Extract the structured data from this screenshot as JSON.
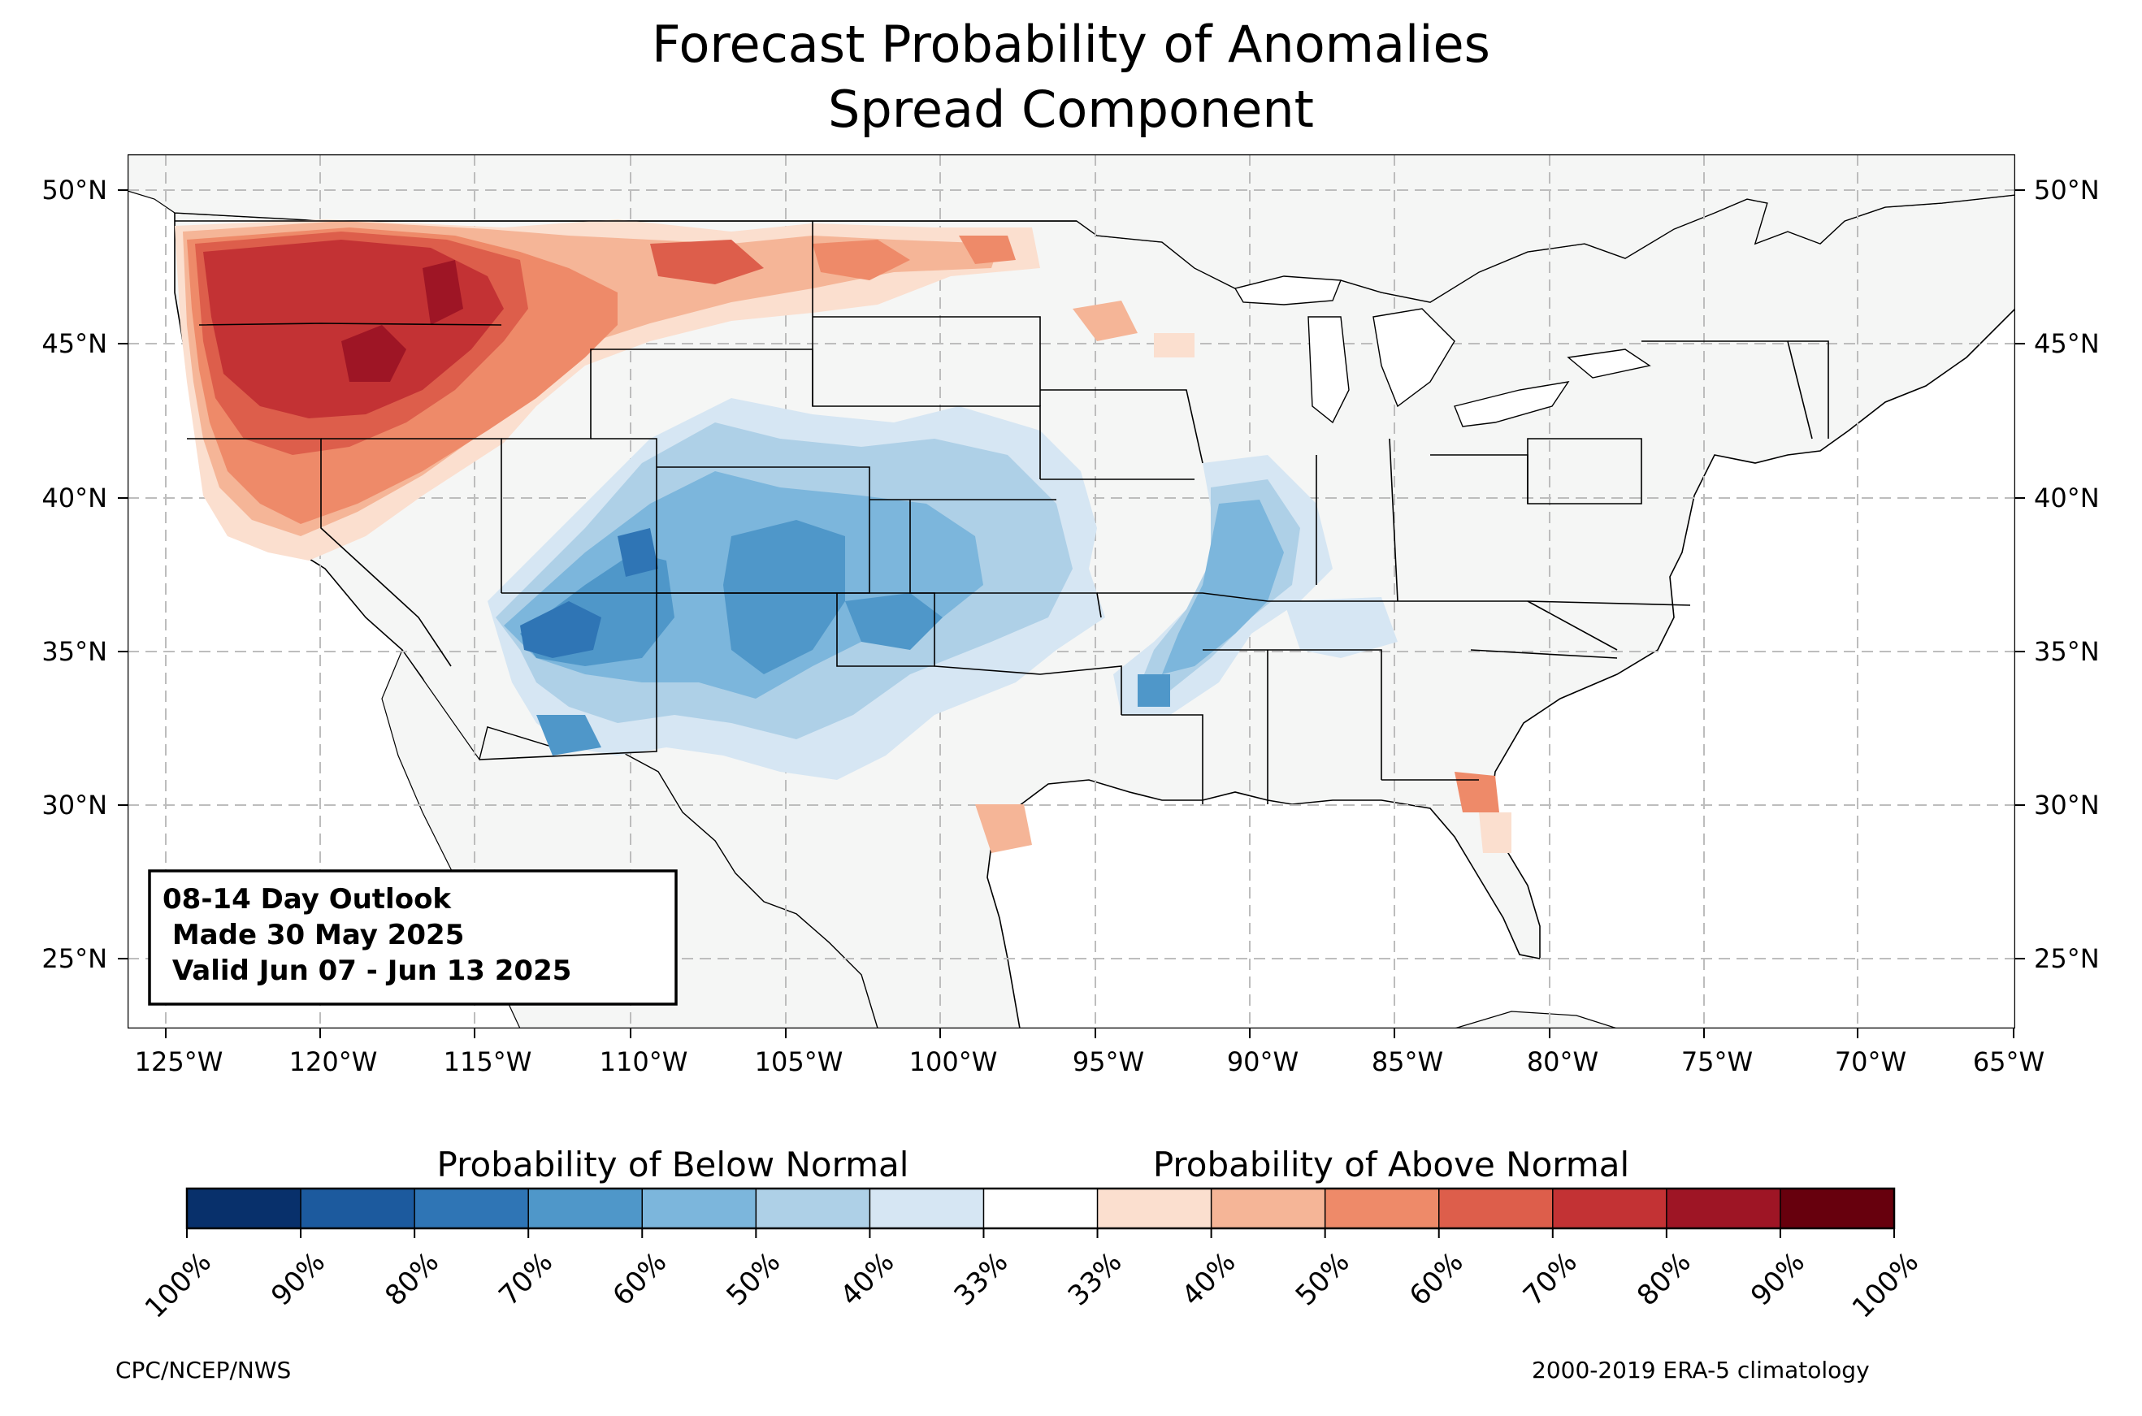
{
  "title": "Forecast Probability of Anomalies",
  "subtitle": "Spread Component",
  "lon_labels": [
    "125°W",
    "120°W",
    "115°W",
    "110°W",
    "105°W",
    "100°W",
    "95°W",
    "90°W",
    "85°W",
    "80°W",
    "75°W",
    "70°W",
    "65°W"
  ],
  "lat_labels": [
    "50°N",
    "45°N",
    "40°N",
    "35°N",
    "30°N",
    "25°N"
  ],
  "outlook": {
    "line1": "08-14 Day Outlook",
    "line2": " Made 30 May 2025",
    "line3": " Valid Jun 07 - Jun 13 2025"
  },
  "legend": {
    "below_label": "Probability of Below Normal",
    "above_label": "Probability of Above Normal",
    "ticks": [
      "100%",
      "90%",
      "80%",
      "70%",
      "60%",
      "50%",
      "40%",
      "33%",
      "33%",
      "40%",
      "50%",
      "60%",
      "70%",
      "80%",
      "90%",
      "100%"
    ],
    "colors": [
      "#08306b",
      "#1c5a9e",
      "#2f75b5",
      "#4f97c9",
      "#7cb6dc",
      "#aed0e7",
      "#d6e6f3",
      "#ffffff",
      "#fbdfcf",
      "#f5b597",
      "#ee8a69",
      "#dd5e4b",
      "#c33234",
      "#9e1525",
      "#67000d"
    ]
  },
  "credit_left": "CPC/NCEP/NWS",
  "credit_right": "2000-2019 ERA-5 climatology"
}
